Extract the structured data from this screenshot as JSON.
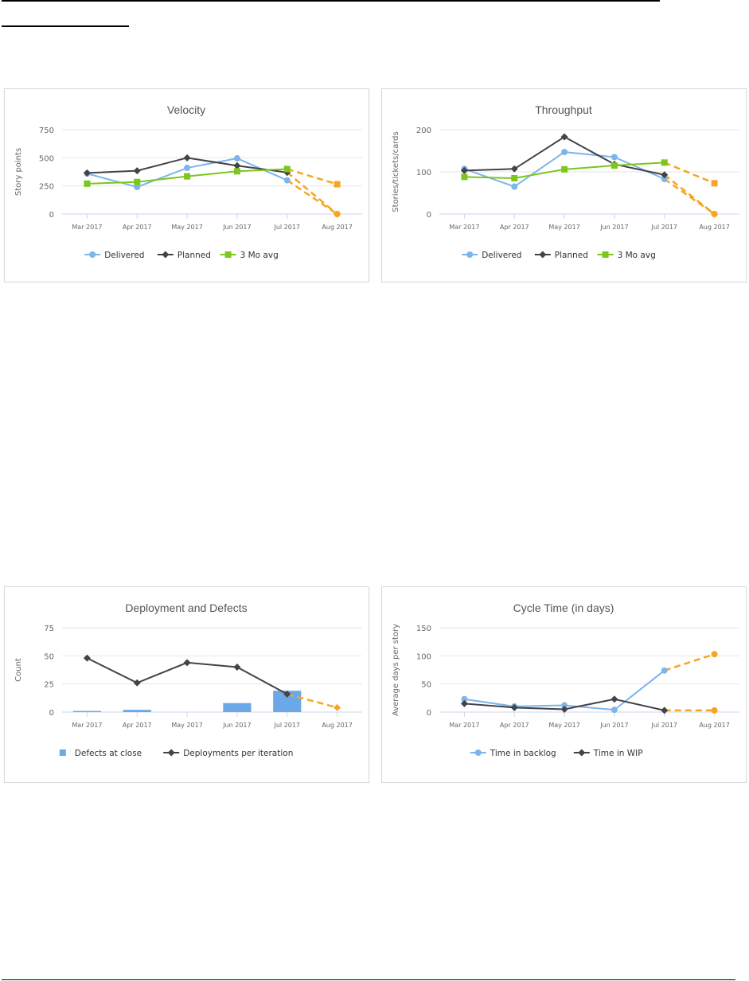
{
  "document": {
    "page_rules": [
      "top-rule",
      "short-rule",
      "bottom-rule"
    ]
  },
  "colors": {
    "delivered": "#7cb5ec",
    "planned": "#434348",
    "avg": "#7cc61d",
    "forecast": "#f7a521",
    "bars": "#6aa8e8",
    "grid": "#e6e6e6",
    "axis": "#ccd6eb"
  },
  "chart_data": [
    {
      "id": "velocity",
      "type": "line",
      "title": "Velocity",
      "xlabel": "",
      "ylabel": "Story points",
      "ylim": [
        0,
        750
      ],
      "yticks": [
        0,
        250,
        500,
        750
      ],
      "grid": true,
      "legend_position": "bottom",
      "categories": [
        "Mar 2017",
        "Apr 2017",
        "May 2017",
        "Jun 2017",
        "Jul 2017",
        "Aug 2017"
      ],
      "series": [
        {
          "name": "Delivered",
          "marker": "circle",
          "color": "#7cb5ec",
          "values": [
            360,
            240,
            410,
            495,
            300,
            null
          ],
          "forecast": {
            "from_index": 4,
            "value": 0,
            "marker": "circle"
          }
        },
        {
          "name": "Planned",
          "marker": "diamond",
          "color": "#434348",
          "values": [
            365,
            385,
            500,
            430,
            370,
            null
          ],
          "forecast": {
            "from_index": 4,
            "value": 0,
            "marker": "circle"
          }
        },
        {
          "name": "3 Mo avg",
          "marker": "square",
          "color": "#7cc61d",
          "values": [
            270,
            285,
            335,
            380,
            400,
            null
          ],
          "forecast": {
            "from_index": 4,
            "value": 265,
            "marker": "square"
          }
        }
      ]
    },
    {
      "id": "throughput",
      "type": "line",
      "title": "Throughput",
      "xlabel": "",
      "ylabel": "Stories/tickets/cards",
      "ylim": [
        0,
        200
      ],
      "yticks": [
        0,
        100,
        200
      ],
      "grid": true,
      "legend_position": "bottom",
      "categories": [
        "Mar 2017",
        "Apr 2017",
        "May 2017",
        "Jun 2017",
        "Jul 2017",
        "Aug 2017"
      ],
      "series": [
        {
          "name": "Delivered",
          "marker": "circle",
          "color": "#7cb5ec",
          "values": [
            107,
            65,
            147,
            135,
            83,
            null
          ],
          "forecast": {
            "from_index": 4,
            "value": 0,
            "marker": "circle"
          }
        },
        {
          "name": "Planned",
          "marker": "diamond",
          "color": "#434348",
          "values": [
            103,
            107,
            183,
            118,
            93,
            null
          ],
          "forecast": {
            "from_index": 4,
            "value": 0,
            "marker": "circle"
          }
        },
        {
          "name": "3 Mo avg",
          "marker": "square",
          "color": "#7cc61d",
          "values": [
            88,
            85,
            106,
            115,
            122,
            null
          ],
          "forecast": {
            "from_index": 4,
            "value": 73,
            "marker": "square"
          }
        }
      ]
    },
    {
      "id": "deploy",
      "type": "bar+line",
      "title": "Deployment and Defects",
      "xlabel": "",
      "ylabel": "Count",
      "ylim": [
        0,
        75
      ],
      "yticks": [
        0,
        25,
        50,
        75
      ],
      "grid": true,
      "legend_position": "bottom",
      "categories": [
        "Mar 2017",
        "Apr 2017",
        "May 2017",
        "Jun 2017",
        "Jul 2017",
        "Aug 2017"
      ],
      "series": [
        {
          "name": "Defects at close",
          "kind": "bar",
          "marker": "square",
          "color": "#6aa8e8",
          "values": [
            1,
            2,
            0,
            8,
            19,
            null
          ]
        },
        {
          "name": "Deployments per iteration",
          "kind": "line",
          "marker": "diamond",
          "color": "#434348",
          "values": [
            48,
            26,
            44,
            40,
            16,
            null
          ],
          "forecast": {
            "from_index": 4,
            "value": 4,
            "marker": "diamond"
          }
        }
      ]
    },
    {
      "id": "cycle",
      "type": "line",
      "title": "Cycle Time (in days)",
      "xlabel": "",
      "ylabel": "Average days per story",
      "ylim": [
        0,
        150
      ],
      "yticks": [
        0,
        50,
        100,
        150
      ],
      "grid": true,
      "legend_position": "bottom",
      "categories": [
        "Mar 2017",
        "Apr 2017",
        "May 2017",
        "Jun 2017",
        "Jul 2017",
        "Aug 2017"
      ],
      "series": [
        {
          "name": "Time in backlog",
          "marker": "circle",
          "color": "#7cb5ec",
          "values": [
            23,
            10,
            12,
            4,
            74,
            null
          ],
          "forecast": {
            "from_index": 4,
            "value": 103,
            "marker": "circle"
          }
        },
        {
          "name": "Time in WIP",
          "marker": "diamond",
          "color": "#434348",
          "values": [
            15,
            8,
            5,
            23,
            3,
            null
          ],
          "forecast": {
            "from_index": 4,
            "value": 3,
            "marker": "circle"
          }
        }
      ]
    }
  ]
}
